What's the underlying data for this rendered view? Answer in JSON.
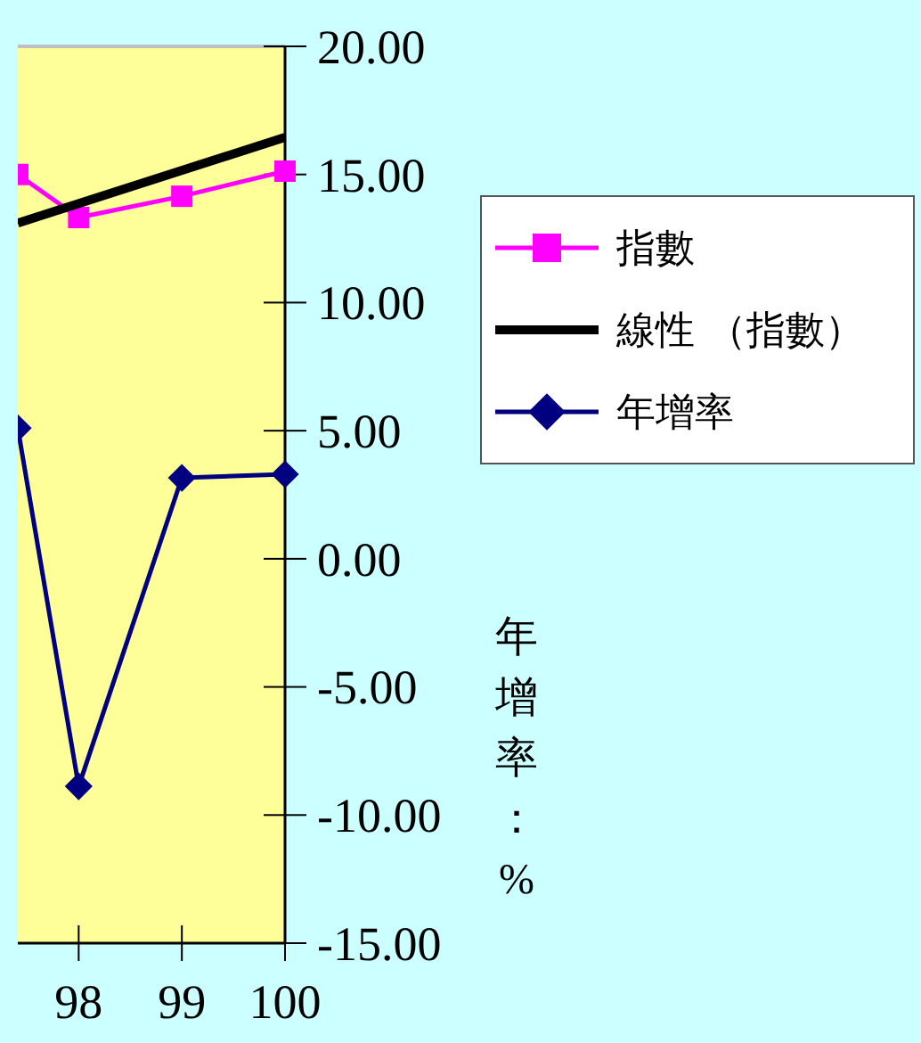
{
  "chart_data": {
    "type": "line",
    "ylabel": "年增率：%",
    "xlim": [
      97.41,
      100
    ],
    "xticks": [
      98,
      99,
      100
    ],
    "ylim": [
      -15,
      20
    ],
    "yticks": [
      {
        "value": 20,
        "label": "20.00"
      },
      {
        "value": 15,
        "label": "15.00"
      },
      {
        "value": 10,
        "label": "10.00"
      },
      {
        "value": 5,
        "label": "5.00"
      },
      {
        "value": 0,
        "label": "0.00"
      },
      {
        "value": -5,
        "label": "-5.00"
      },
      {
        "value": -10,
        "label": "-10.00"
      },
      {
        "value": -15,
        "label": "-15.00"
      }
    ],
    "series": [
      {
        "name": "指數",
        "color": "#ff00ff",
        "marker": "square",
        "x": [
          97.41,
          98,
          99,
          100
        ],
        "values": [
          15.0,
          13.32,
          14.15,
          15.13
        ]
      },
      {
        "name": "線性 （指數）",
        "color": "#000000",
        "marker": "none",
        "x": [
          97.41,
          100
        ],
        "values": [
          13.1,
          16.45
        ]
      },
      {
        "name": "年增率",
        "color": "#000080",
        "marker": "diamond",
        "x": [
          97.41,
          98,
          99,
          100
        ],
        "values": [
          5.1,
          -8.88,
          3.16,
          3.3
        ]
      }
    ],
    "legend": "right",
    "grid": false
  }
}
